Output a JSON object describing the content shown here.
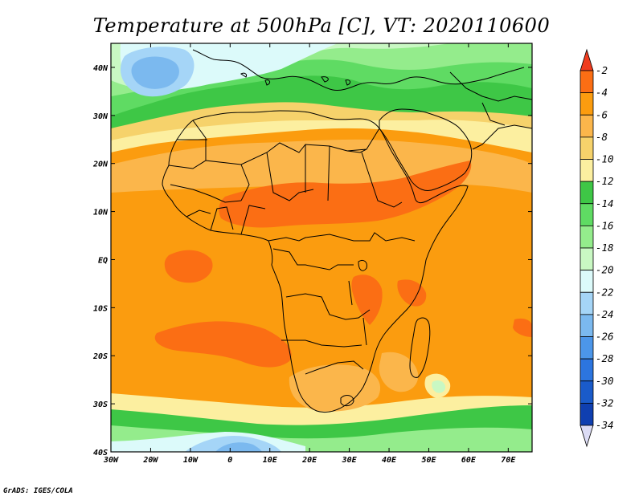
{
  "title": "Temperature at 500hPa [C], VT: 2020110600",
  "credit": "GrADS: IGES/COLA",
  "map": {
    "lon_range": [
      -30,
      76
    ],
    "lat_range": [
      -40,
      45
    ],
    "x_ticks": [
      {
        "lon": -30,
        "label": "30W"
      },
      {
        "lon": -20,
        "label": "20W"
      },
      {
        "lon": -10,
        "label": "10W"
      },
      {
        "lon": 0,
        "label": "0"
      },
      {
        "lon": 10,
        "label": "10E"
      },
      {
        "lon": 20,
        "label": "20E"
      },
      {
        "lon": 30,
        "label": "30E"
      },
      {
        "lon": 40,
        "label": "40E"
      },
      {
        "lon": 50,
        "label": "50E"
      },
      {
        "lon": 60,
        "label": "60E"
      },
      {
        "lon": 70,
        "label": "70E"
      }
    ],
    "y_ticks": [
      {
        "lat": 40,
        "label": "40N"
      },
      {
        "lat": 30,
        "label": "30N"
      },
      {
        "lat": 20,
        "label": "20N"
      },
      {
        "lat": 10,
        "label": "10N"
      },
      {
        "lat": 0,
        "label": "EQ"
      },
      {
        "lat": -10,
        "label": "10S"
      },
      {
        "lat": -20,
        "label": "20S"
      },
      {
        "lat": -30,
        "label": "30S"
      },
      {
        "lat": -40,
        "label": "40S"
      }
    ]
  },
  "colorbar": {
    "labels": [
      "-2",
      "-4",
      "-6",
      "-8",
      "-10",
      "-12",
      "-14",
      "-16",
      "-18",
      "-20",
      "-22",
      "-24",
      "-26",
      "-28",
      "-30",
      "-32",
      "-34"
    ],
    "colors": [
      "#f03c1e",
      "#fb6e14",
      "#fb9c0f",
      "#fbb64b",
      "#f6d26b",
      "#fcefa0",
      "#3ec746",
      "#5fdb63",
      "#94ec8c",
      "#c9f8c3",
      "#dcfafa",
      "#a5d5f7",
      "#7bb9ef",
      "#4c96e9",
      "#2c75df",
      "#1a5bca",
      "#0f3fb0",
      "#0a1a70"
    ]
  },
  "field_colors": {
    "n5": "#f03c1e",
    "n6": "#fb6e14",
    "n7": "#fb9c0f",
    "n9": "#fbb64b",
    "n11": "#f6d26b",
    "n12": "#fcefa0",
    "n13": "#3ec746",
    "n15": "#5fdb63",
    "n17": "#94ec8c",
    "n19": "#c9f8c3",
    "n20": "#dcfafa",
    "n22": "#a5d5f7",
    "n24": "#7bb9ef",
    "n26": "#4c96e9"
  },
  "boundary_color": "#000000"
}
